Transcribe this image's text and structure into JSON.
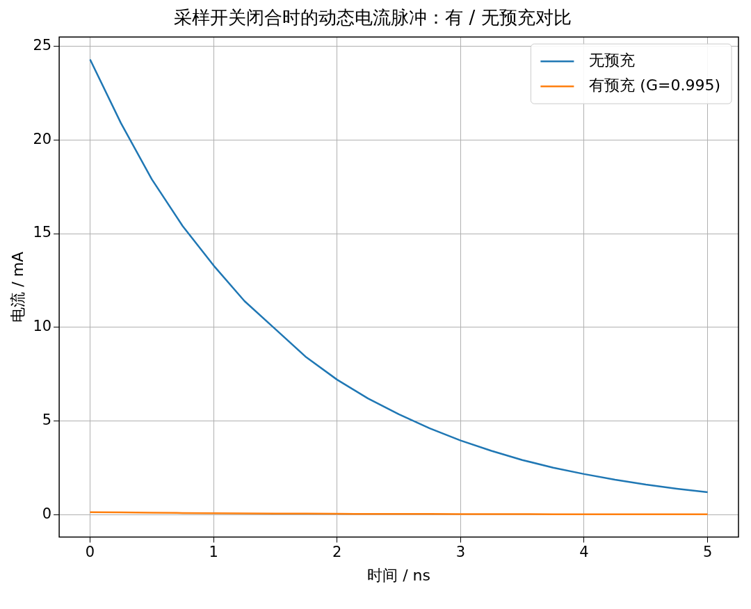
{
  "chart_data": {
    "type": "line",
    "title": "采样开关闭合时的动态电流脉冲：有 / 无预充对比",
    "xlabel": "时间 / ns",
    "ylabel": "电流 / mA",
    "x": [
      0,
      0.25,
      0.5,
      0.75,
      1,
      1.25,
      1.5,
      1.75,
      2,
      2.25,
      2.5,
      2.75,
      3,
      3.25,
      3.5,
      3.75,
      4,
      4.25,
      4.5,
      4.75,
      5
    ],
    "series": [
      {
        "name": "无预充",
        "color": "#1f77b4",
        "values": [
          24.3,
          20.9,
          17.9,
          15.4,
          13.3,
          11.4,
          9.9,
          8.4,
          7.2,
          6.2,
          5.35,
          4.6,
          3.95,
          3.4,
          2.91,
          2.5,
          2.16,
          1.86,
          1.6,
          1.38,
          1.19
        ]
      },
      {
        "name": "有预充 (G=0.995)",
        "color": "#ff7f0e",
        "values": [
          0.12,
          0.11,
          0.1,
          0.08,
          0.07,
          0.06,
          0.05,
          0.05,
          0.04,
          0.03,
          0.03,
          0.03,
          0.02,
          0.02,
          0.02,
          0.01,
          0.01,
          0.01,
          0.01,
          0.01,
          0.01
        ]
      }
    ],
    "xlim": [
      -0.25,
      5.25
    ],
    "ylim": [
      -1.2,
      25.5
    ],
    "xticks": [
      0,
      1,
      2,
      3,
      4,
      5
    ],
    "yticks": [
      0,
      5,
      10,
      15,
      20,
      25
    ],
    "grid": true,
    "legend": "top right",
    "marker": "none",
    "line_style": "solid"
  }
}
